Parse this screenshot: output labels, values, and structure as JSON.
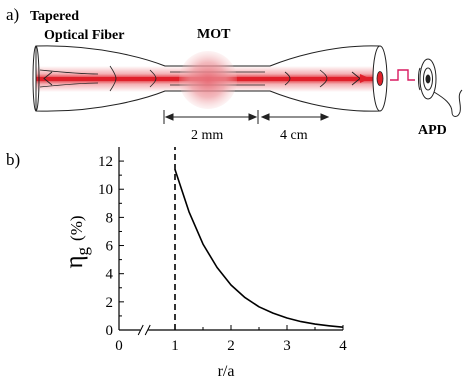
{
  "panel_a": {
    "label": "a)",
    "fiber_label_line1": "Tapered",
    "fiber_label_line2": "Optical Fiber",
    "mot_label": "MOT",
    "apd_label": "APD",
    "dim_waist": "2 mm",
    "dim_taper": "4 cm",
    "colors": {
      "beam": "#e0202a",
      "signal": "#d81b60",
      "outline": "#222222"
    }
  },
  "panel_b": {
    "label": "b)",
    "eta_symbol": "η",
    "eta_subscript": "g",
    "ylabel_unit": "(%)",
    "xlabel": "r/a",
    "axis_break": "//"
  },
  "chart_data": {
    "type": "line",
    "title": "",
    "xlabel": "r/a",
    "ylabel": "η_g (%)",
    "xlim": [
      0,
      4
    ],
    "ylim": [
      0,
      13
    ],
    "x_ticks": [
      0,
      1,
      2,
      3,
      4
    ],
    "x_tick_labels": [
      "0",
      "1",
      "2",
      "3",
      "4"
    ],
    "y_ticks": [
      0,
      2,
      4,
      6,
      8,
      10,
      12
    ],
    "y_tick_labels": [
      "0",
      "2",
      "4",
      "6",
      "8",
      "10",
      "12"
    ],
    "x_axis_break": "between 0 and 1",
    "reference_line": {
      "x": 1,
      "style": "dashed"
    },
    "grid": false,
    "series": [
      {
        "x": [
          1.0,
          1.25,
          1.5,
          1.75,
          2.0,
          2.25,
          2.5,
          2.75,
          3.0,
          3.25,
          3.5,
          3.75,
          4.0
        ],
        "y": [
          11.4,
          8.4,
          6.1,
          4.45,
          3.2,
          2.3,
          1.65,
          1.2,
          0.85,
          0.6,
          0.42,
          0.3,
          0.2
        ]
      }
    ]
  }
}
